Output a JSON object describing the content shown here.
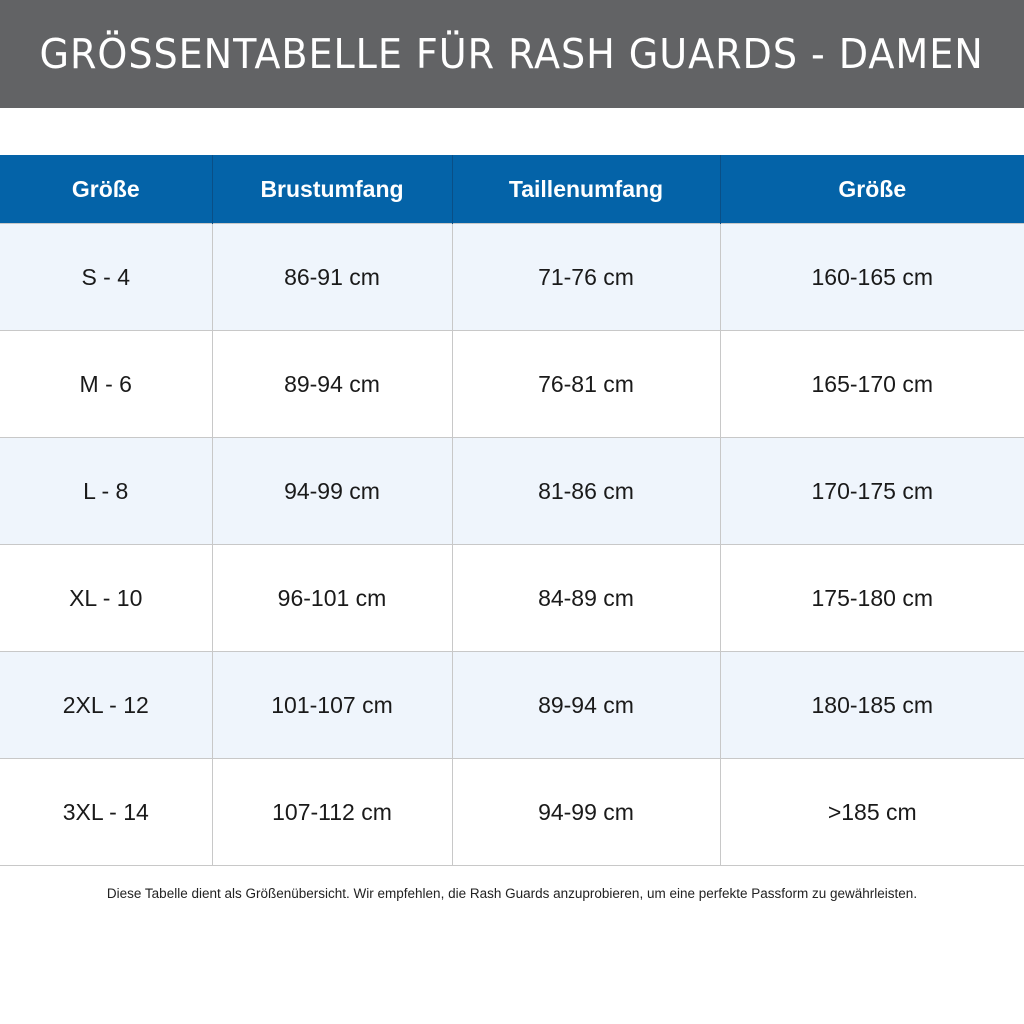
{
  "title": "GRÖSSENTABELLE FÜR RASH GUARDS - DAMEN",
  "table": {
    "headers": [
      "Größe",
      "Brustumfang",
      "Taillenumfang",
      "Größe"
    ],
    "rows": [
      [
        "S - 4",
        "86-91 cm",
        "71-76 cm",
        "160-165 cm"
      ],
      [
        "M - 6",
        "89-94 cm",
        "76-81 cm",
        "165-170 cm"
      ],
      [
        "L - 8",
        "94-99 cm",
        "81-86 cm",
        "170-175 cm"
      ],
      [
        "XL - 10",
        "96-101 cm",
        "84-89 cm",
        "175-180 cm"
      ],
      [
        "2XL - 12",
        "101-107 cm",
        "89-94 cm",
        "180-185 cm"
      ],
      [
        "3XL - 14",
        "107-112 cm",
        "94-99 cm",
        ">185 cm"
      ]
    ]
  },
  "note": "Diese Tabelle dient als Größenübersicht. Wir empfehlen, die Rash Guards anzuprobieren, um eine perfekte Passform zu gewährleisten.",
  "colors": {
    "header": "#0463a8",
    "title_bar": "#626365",
    "alt_row": "#eff5fc"
  }
}
